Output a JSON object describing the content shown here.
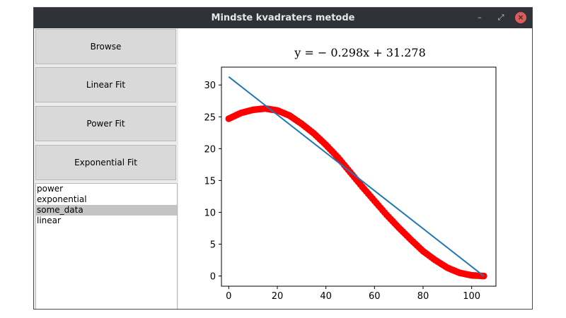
{
  "window": {
    "title": "Mindste kvadraters metode",
    "controls": [
      "minimize-icon",
      "maximize-icon",
      "close-icon"
    ]
  },
  "sidebar": {
    "buttons": [
      {
        "label": "Browse"
      },
      {
        "label": "Linear Fit"
      },
      {
        "label": "Power Fit"
      },
      {
        "label": "Exponential Fit"
      }
    ],
    "list": {
      "items": [
        "power",
        "exponential",
        "some_data",
        "linear"
      ],
      "selected": "some_data"
    }
  },
  "chart_data": {
    "type": "scatter",
    "title": "y = − 0.298x + 31.278",
    "xlim": [
      -3,
      110
    ],
    "ylim": [
      -1.6,
      32.8
    ],
    "xticks": [
      0,
      20,
      40,
      60,
      80,
      100
    ],
    "yticks": [
      0,
      5,
      10,
      15,
      20,
      25,
      30
    ],
    "grid": false,
    "series": [
      {
        "kind": "scatter",
        "color": "#ff0000",
        "x": [
          0,
          5,
          10,
          15,
          20,
          25,
          30,
          35,
          40,
          45,
          50,
          55,
          60,
          65,
          70,
          75,
          80,
          85,
          90,
          95,
          100,
          105
        ],
        "y": [
          24.7,
          25.6,
          26.1,
          26.3,
          26.0,
          25.2,
          23.9,
          22.4,
          20.6,
          18.6,
          16.3,
          14.0,
          11.8,
          9.6,
          7.6,
          5.7,
          3.9,
          2.5,
          1.3,
          0.5,
          0.1,
          0.0
        ]
      },
      {
        "kind": "line",
        "color": "#1f77b4",
        "slope": -0.298,
        "intercept": 31.278,
        "x_range": [
          0,
          105
        ]
      }
    ]
  }
}
